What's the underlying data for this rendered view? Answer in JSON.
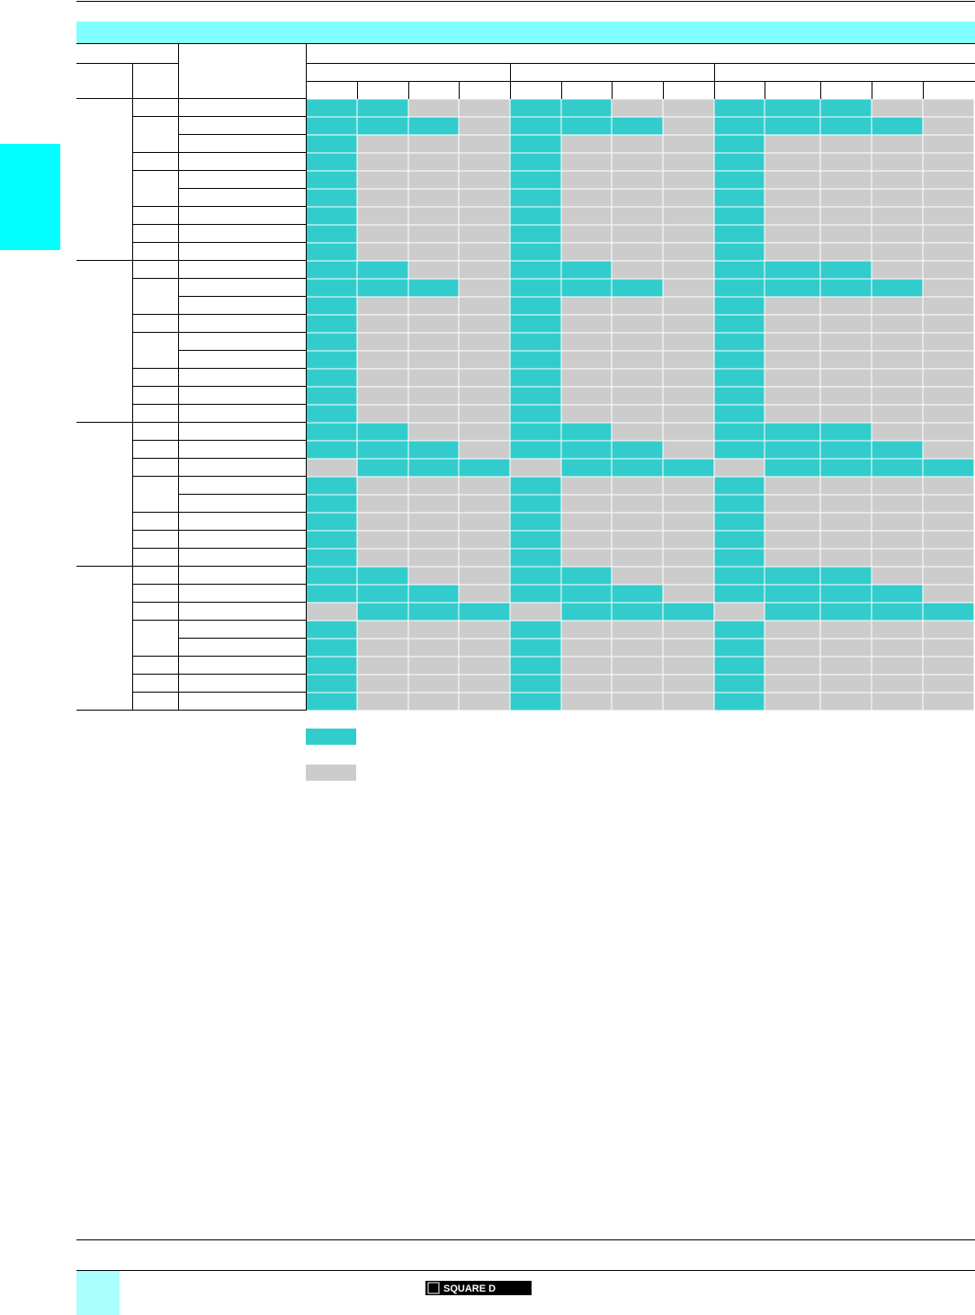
{
  "table": {
    "palette": [
      "#cccccc",
      "#33cccc"
    ],
    "rows": [
      [
        1,
        1,
        0,
        0,
        1,
        1,
        0,
        0,
        1,
        1,
        1,
        0,
        0
      ],
      [
        1,
        1,
        1,
        0,
        1,
        1,
        1,
        0,
        1,
        1,
        1,
        1,
        0
      ],
      [
        1,
        0,
        0,
        0,
        1,
        0,
        0,
        0,
        1,
        0,
        0,
        0,
        0
      ],
      [
        1,
        0,
        0,
        0,
        1,
        0,
        0,
        0,
        1,
        0,
        0,
        0,
        0
      ],
      [
        1,
        0,
        0,
        0,
        1,
        0,
        0,
        0,
        1,
        0,
        0,
        0,
        0
      ],
      [
        1,
        0,
        0,
        0,
        1,
        0,
        0,
        0,
        1,
        0,
        0,
        0,
        0
      ],
      [
        1,
        0,
        0,
        0,
        1,
        0,
        0,
        0,
        1,
        0,
        0,
        0,
        0
      ],
      [
        1,
        0,
        0,
        0,
        1,
        0,
        0,
        0,
        1,
        0,
        0,
        0,
        0
      ],
      [
        1,
        0,
        0,
        0,
        1,
        0,
        0,
        0,
        1,
        0,
        0,
        0,
        0
      ],
      [
        1,
        1,
        0,
        0,
        1,
        1,
        0,
        0,
        1,
        1,
        1,
        0,
        0
      ],
      [
        1,
        1,
        1,
        0,
        1,
        1,
        1,
        0,
        1,
        1,
        1,
        1,
        0
      ],
      [
        1,
        0,
        0,
        0,
        1,
        0,
        0,
        0,
        1,
        0,
        0,
        0,
        0
      ],
      [
        1,
        0,
        0,
        0,
        1,
        0,
        0,
        0,
        1,
        0,
        0,
        0,
        0
      ],
      [
        1,
        0,
        0,
        0,
        1,
        0,
        0,
        0,
        1,
        0,
        0,
        0,
        0
      ],
      [
        1,
        0,
        0,
        0,
        1,
        0,
        0,
        0,
        1,
        0,
        0,
        0,
        0
      ],
      [
        1,
        0,
        0,
        0,
        1,
        0,
        0,
        0,
        1,
        0,
        0,
        0,
        0
      ],
      [
        1,
        0,
        0,
        0,
        1,
        0,
        0,
        0,
        1,
        0,
        0,
        0,
        0
      ],
      [
        1,
        0,
        0,
        0,
        1,
        0,
        0,
        0,
        1,
        0,
        0,
        0,
        0
      ],
      [
        1,
        1,
        0,
        0,
        1,
        1,
        0,
        0,
        1,
        1,
        1,
        0,
        0
      ],
      [
        1,
        1,
        1,
        0,
        1,
        1,
        1,
        0,
        1,
        1,
        1,
        1,
        0
      ],
      [
        0,
        1,
        1,
        1,
        0,
        1,
        1,
        1,
        0,
        1,
        1,
        1,
        1
      ],
      [
        1,
        0,
        0,
        0,
        1,
        0,
        0,
        0,
        1,
        0,
        0,
        0,
        0
      ],
      [
        1,
        0,
        0,
        0,
        1,
        0,
        0,
        0,
        1,
        0,
        0,
        0,
        0
      ],
      [
        1,
        0,
        0,
        0,
        1,
        0,
        0,
        0,
        1,
        0,
        0,
        0,
        0
      ],
      [
        1,
        0,
        0,
        0,
        1,
        0,
        0,
        0,
        1,
        0,
        0,
        0,
        0
      ],
      [
        1,
        0,
        0,
        0,
        1,
        0,
        0,
        0,
        1,
        0,
        0,
        0,
        0
      ],
      [
        1,
        1,
        0,
        0,
        1,
        1,
        0,
        0,
        1,
        1,
        1,
        0,
        0
      ],
      [
        1,
        1,
        1,
        0,
        1,
        1,
        1,
        0,
        1,
        1,
        1,
        1,
        0
      ],
      [
        0,
        1,
        1,
        1,
        0,
        1,
        1,
        1,
        0,
        1,
        1,
        1,
        1
      ],
      [
        1,
        0,
        0,
        0,
        1,
        0,
        0,
        0,
        1,
        0,
        0,
        0,
        0
      ],
      [
        1,
        0,
        0,
        0,
        1,
        0,
        0,
        0,
        1,
        0,
        0,
        0,
        0
      ],
      [
        1,
        0,
        0,
        0,
        1,
        0,
        0,
        0,
        1,
        0,
        0,
        0,
        0
      ],
      [
        1,
        0,
        0,
        0,
        1,
        0,
        0,
        0,
        1,
        0,
        0,
        0,
        0
      ],
      [
        1,
        0,
        0,
        0,
        1,
        0,
        0,
        0,
        1,
        0,
        0,
        0,
        0
      ]
    ]
  },
  "footer": {
    "logo": "SQUARE D"
  }
}
